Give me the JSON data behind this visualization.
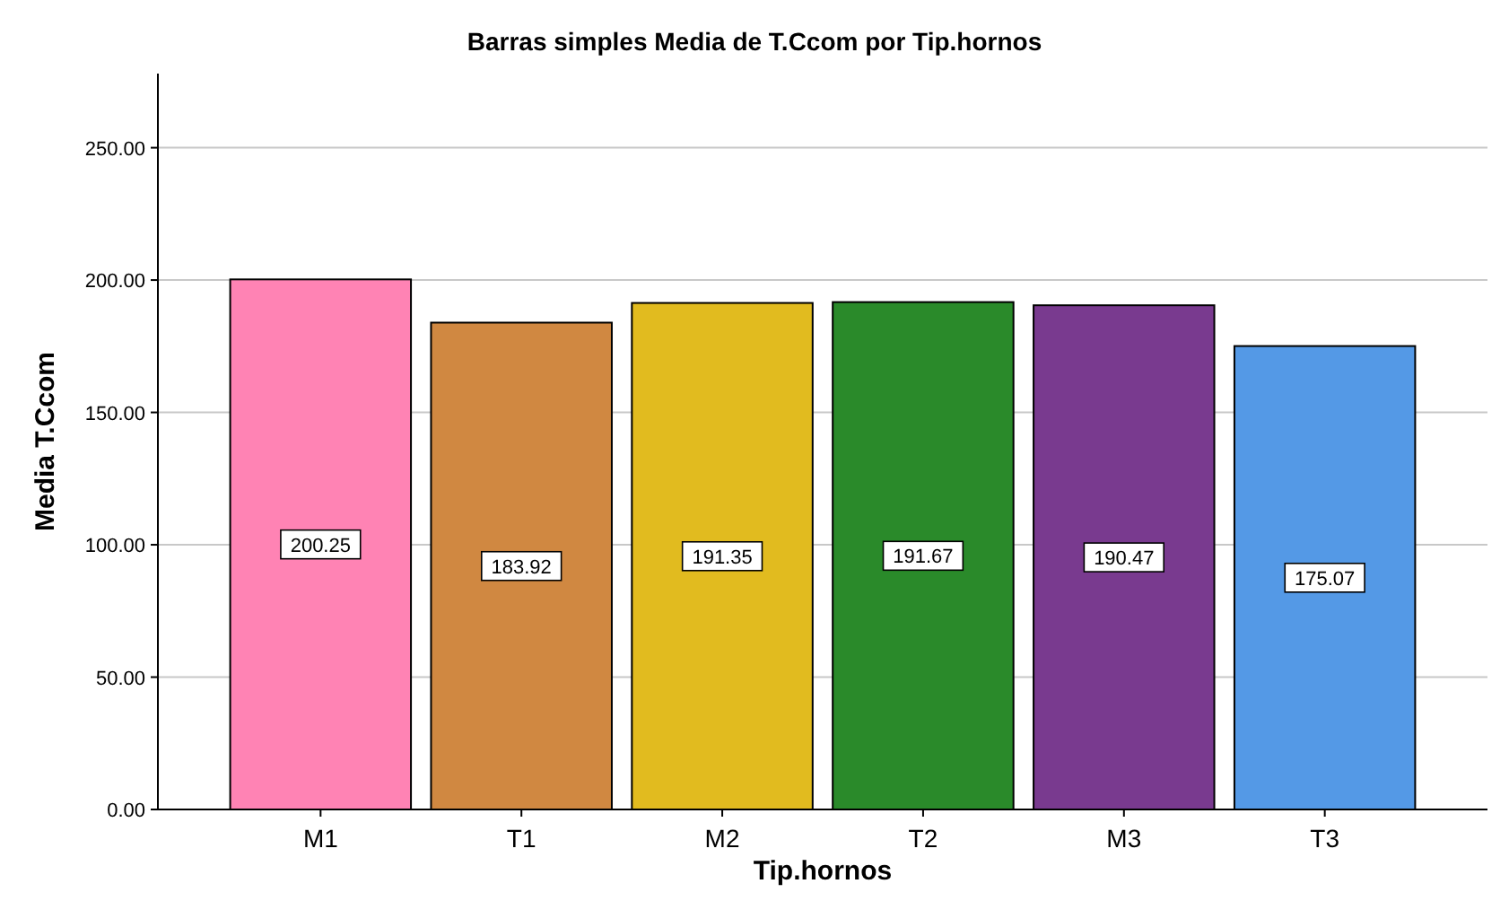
{
  "chart_data": {
    "type": "bar",
    "title": "Barras simples Media de T.Ccom por Tip.hornos",
    "xlabel": "Tip.hornos",
    "ylabel": "Media T.Ccom",
    "categories": [
      "M1",
      "T1",
      "M2",
      "T2",
      "M3",
      "T3"
    ],
    "values": [
      200.25,
      183.92,
      191.35,
      191.67,
      190.47,
      175.07
    ],
    "colors": [
      "#ff83b4",
      "#d08841",
      "#e1bb1f",
      "#2a8a2a",
      "#793a8f",
      "#5499e6"
    ],
    "ylim": [
      0,
      278
    ],
    "yticks": [
      {
        "value": 0,
        "label": "0.00"
      },
      {
        "value": 50,
        "label": "50.00"
      },
      {
        "value": 100,
        "label": "100.00"
      },
      {
        "value": 150,
        "label": "150.00"
      },
      {
        "value": 200,
        "label": "200.00"
      },
      {
        "value": 250,
        "label": "250.00"
      }
    ],
    "grid": "y",
    "data_labels": true
  }
}
